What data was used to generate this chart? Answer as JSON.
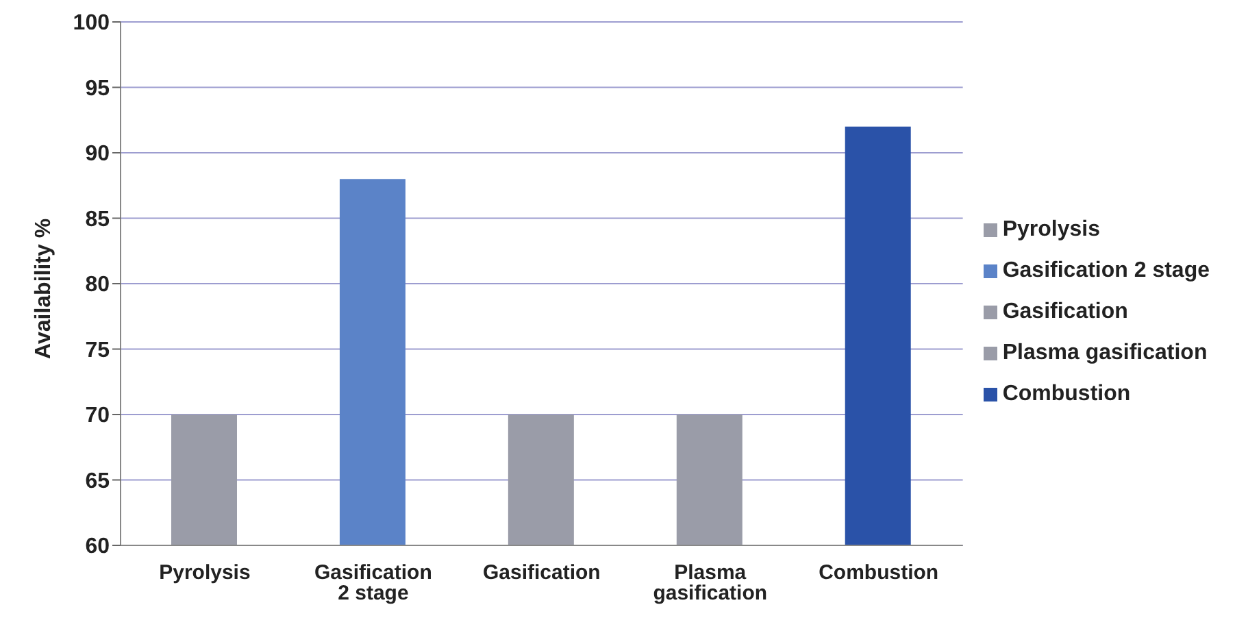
{
  "chart_data": {
    "type": "bar",
    "ylabel": "Availability %",
    "categories": [
      "Pyrolysis",
      "Gasification 2 stage",
      "Gasification",
      "Plasma gasification",
      "Combustion"
    ],
    "series": [
      {
        "name": "Pyrolysis",
        "color": "#9a9ca8",
        "values": [
          70,
          null,
          null,
          null,
          null
        ]
      },
      {
        "name": "Gasification 2 stage",
        "color": "#5b83c8",
        "values": [
          null,
          88,
          null,
          null,
          null
        ]
      },
      {
        "name": "Gasification",
        "color": "#9a9ca8",
        "values": [
          null,
          null,
          70,
          null,
          null
        ]
      },
      {
        "name": "Plasma gasification",
        "color": "#9a9ca8",
        "values": [
          null,
          null,
          null,
          70,
          null
        ]
      },
      {
        "name": "Combustion",
        "color": "#2a52a8",
        "values": [
          null,
          null,
          null,
          null,
          92
        ]
      }
    ],
    "ylim": [
      60,
      100
    ],
    "yticks": [
      60,
      65,
      70,
      75,
      80,
      85,
      90,
      95,
      100
    ],
    "grid": "y",
    "legend": "right"
  }
}
